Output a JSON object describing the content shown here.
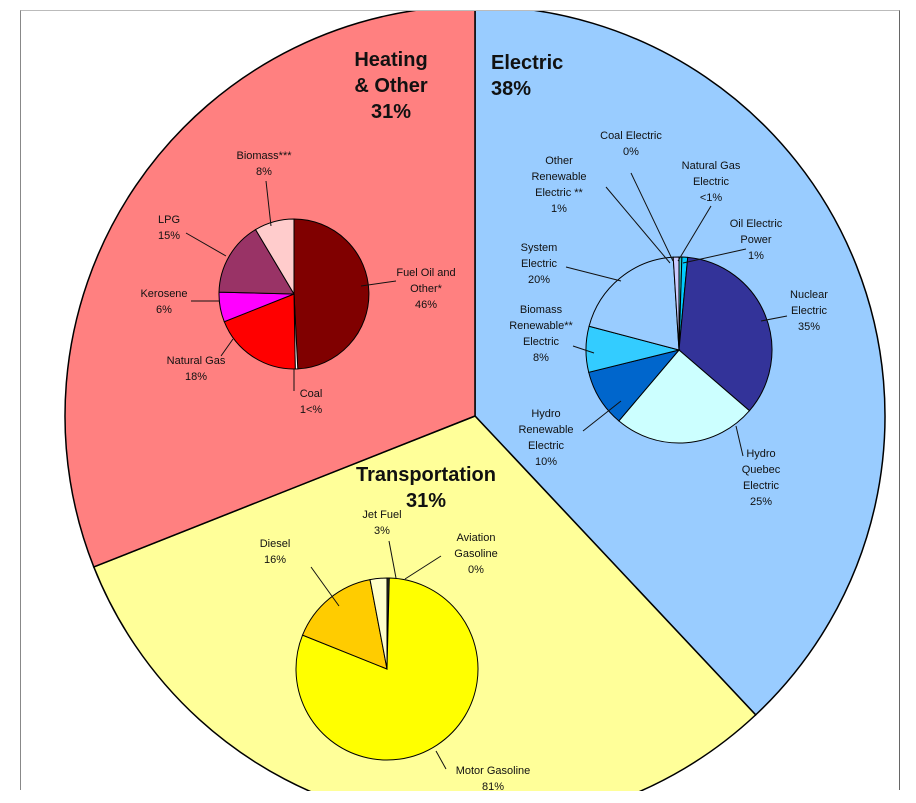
{
  "chart_data": {
    "type": "pie",
    "main": {
      "slices": [
        {
          "name": "Electric",
          "value": 38,
          "color": "#99ccff",
          "title_lines": [
            "Electric",
            "38%"
          ]
        },
        {
          "name": "Transportation",
          "value": 31,
          "color": "#ffff99",
          "title_lines": [
            "Transportation",
            "31%"
          ]
        },
        {
          "name": "Heating & Other",
          "value": 31,
          "color": "#ff8080",
          "title_lines": [
            "Heating",
            "& Other",
            "31%"
          ]
        }
      ]
    },
    "subpies": [
      {
        "parent": "Electric",
        "slices": [
          {
            "name": "Coal Electric",
            "value": 0,
            "color": "#003300",
            "label_lines": [
              "Coal Electric",
              "0%"
            ]
          },
          {
            "name": "Natural Gas Electric",
            "value": 0.5,
            "color": "#33cccc",
            "label_lines": [
              "Natural Gas",
              "Electric",
              "<1%"
            ]
          },
          {
            "name": "Oil Electric Power",
            "value": 1,
            "color": "#00ccff",
            "label_lines": [
              "Oil Electric",
              "Power",
              "1%"
            ]
          },
          {
            "name": "Nuclear Electric",
            "value": 35,
            "color": "#333399",
            "label_lines": [
              "Nuclear",
              "Electric",
              "35%"
            ]
          },
          {
            "name": "Hydro Quebec Electric",
            "value": 25,
            "color": "#ccffff",
            "label_lines": [
              "Hydro",
              "Quebec",
              "Electric",
              "25%"
            ]
          },
          {
            "name": "Hydro Renewable Electric",
            "value": 10,
            "color": "#0066cc",
            "label_lines": [
              "Hydro",
              "Renewable",
              "Electric",
              "10%"
            ]
          },
          {
            "name": "Biomass Renewable Electric",
            "value": 8,
            "color": "#33ccff",
            "label_lines": [
              "Biomass",
              "Renewable**",
              "",
              "Electric",
              "8%"
            ]
          },
          {
            "name": "System Electric",
            "value": 20,
            "color": "#99ccff",
            "label_lines": [
              "System",
              "Electric",
              "20%"
            ]
          },
          {
            "name": "Other Renewable Electric",
            "value": 1,
            "color": "#ccccff",
            "label_lines": [
              "Other",
              "Renewable",
              "Electric  **",
              "1%"
            ]
          }
        ]
      },
      {
        "parent": "Heating & Other",
        "slices": [
          {
            "name": "Fuel Oil and Other",
            "value": 46,
            "color": "#800000",
            "label_lines": [
              "Fuel Oil and",
              "Other*",
              "46%"
            ]
          },
          {
            "name": "Coal",
            "value": 0.5,
            "color": "#ffffff",
            "label_lines": [
              "Coal",
              "1<%"
            ]
          },
          {
            "name": "Natural Gas",
            "value": 18,
            "color": "#ff0000",
            "label_lines": [
              "Natural Gas",
              "18%"
            ]
          },
          {
            "name": "Kerosene",
            "value": 6,
            "color": "#ff00ff",
            "label_lines": [
              "Kerosene",
              "6%"
            ]
          },
          {
            "name": "LPG",
            "value": 15,
            "color": "#993366",
            "label_lines": [
              "LPG",
              "15%"
            ]
          },
          {
            "name": "Biomass",
            "value": 8,
            "color": "#ffcccc",
            "label_lines": [
              "Biomass***",
              "8%"
            ]
          }
        ]
      },
      {
        "parent": "Transportation",
        "slices": [
          {
            "name": "Aviation Gasoline",
            "value": 0.4,
            "color": "#333333",
            "label_lines": [
              "Aviation",
              "Gasoline",
              "0%"
            ]
          },
          {
            "name": "Motor Gasoline",
            "value": 81,
            "color": "#ffff00",
            "label_lines": [
              "Motor Gasoline",
              "81%"
            ]
          },
          {
            "name": "Diesel",
            "value": 16,
            "color": "#ffcc00",
            "label_lines": [
              "Diesel",
              "16%"
            ]
          },
          {
            "name": "Jet Fuel",
            "value": 3,
            "color": "#ffffcc",
            "label_lines": [
              "Jet Fuel",
              "3%"
            ]
          }
        ]
      }
    ]
  }
}
